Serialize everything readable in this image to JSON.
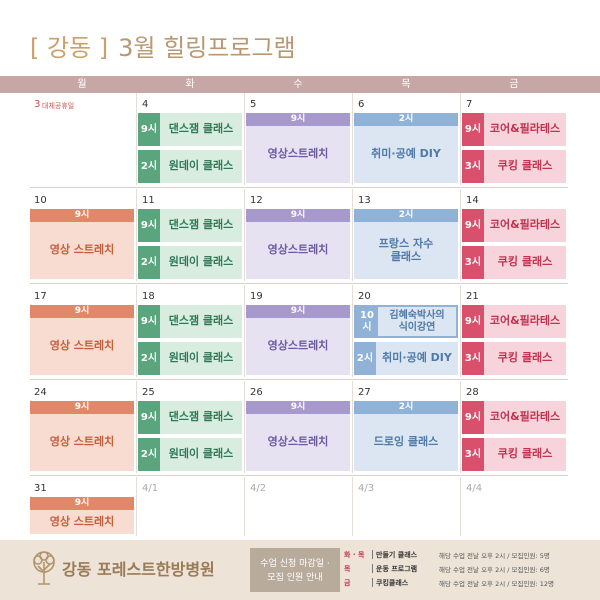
{
  "header": {
    "bracket": "[ 강동 ]",
    "title": "3월 힐링프로그램"
  },
  "weekdays": [
    "월",
    "화",
    "수",
    "목",
    "금"
  ],
  "weeks": [
    [
      {
        "date": "3",
        "date_color": "#d0504a",
        "note": "대체공휴일",
        "events": []
      },
      {
        "date": "4",
        "color": "green",
        "layout": "split",
        "events": [
          {
            "time": "9시",
            "name": "댄스잼 클래스"
          },
          {
            "time": "2시",
            "name": "원데이 클래스"
          }
        ]
      },
      {
        "date": "5",
        "color": "purple",
        "layout": "header",
        "events": [
          {
            "time": "9시",
            "name": "영상스트레치"
          }
        ]
      },
      {
        "date": "6",
        "color": "blue",
        "layout": "header",
        "events": [
          {
            "time": "2시",
            "name": "취미·공예 DIY"
          }
        ]
      },
      {
        "date": "7",
        "color": "pink",
        "layout": "split",
        "events": [
          {
            "time": "9시",
            "name": "코어&필라테스"
          },
          {
            "time": "3시",
            "name": "쿠킹 클래스"
          }
        ]
      }
    ],
    [
      {
        "date": "10",
        "color": "orange",
        "layout": "header",
        "events": [
          {
            "time": "9시",
            "name": "영상 스트레치"
          }
        ]
      },
      {
        "date": "11",
        "color": "green",
        "layout": "split",
        "events": [
          {
            "time": "9시",
            "name": "댄스잼 클래스"
          },
          {
            "time": "2시",
            "name": "원데이 클래스"
          }
        ]
      },
      {
        "date": "12",
        "color": "purple",
        "layout": "header",
        "events": [
          {
            "time": "9시",
            "name": "영상스트레치"
          }
        ]
      },
      {
        "date": "13",
        "color": "blue",
        "layout": "header",
        "events": [
          {
            "time": "2시",
            "name": "프랑스 자수\n클래스"
          }
        ]
      },
      {
        "date": "14",
        "color": "pink",
        "layout": "split",
        "events": [
          {
            "time": "9시",
            "name": "코어&필라테스"
          },
          {
            "time": "3시",
            "name": "쿠킹 클래스"
          }
        ]
      }
    ],
    [
      {
        "date": "17",
        "color": "orange",
        "layout": "header",
        "events": [
          {
            "time": "9시",
            "name": "영상 스트레치"
          }
        ]
      },
      {
        "date": "18",
        "color": "green",
        "layout": "split",
        "events": [
          {
            "time": "9시",
            "name": "댄스잼 클래스"
          },
          {
            "time": "2시",
            "name": "원데이 클래스"
          }
        ]
      },
      {
        "date": "19",
        "color": "purple",
        "layout": "header",
        "events": [
          {
            "time": "9시",
            "name": "영상스트레치"
          }
        ]
      },
      {
        "date": "20",
        "color": "blue",
        "layout": "split",
        "highlight_first": true,
        "events": [
          {
            "time": "10시",
            "name": "김혜숙박사의\n식이강연"
          },
          {
            "time": "2시",
            "name": "취미·공예 DIY"
          }
        ]
      },
      {
        "date": "21",
        "color": "pink",
        "layout": "split",
        "events": [
          {
            "time": "9시",
            "name": "코어&필라테스"
          },
          {
            "time": "3시",
            "name": "쿠킹 클래스"
          }
        ]
      }
    ],
    [
      {
        "date": "24",
        "color": "orange",
        "layout": "header",
        "events": [
          {
            "time": "9시",
            "name": "영상 스트레치"
          }
        ]
      },
      {
        "date": "25",
        "color": "green",
        "layout": "split",
        "events": [
          {
            "time": "9시",
            "name": "댄스잼 클래스"
          },
          {
            "time": "2시",
            "name": "원데이 클래스"
          }
        ]
      },
      {
        "date": "26",
        "color": "purple",
        "layout": "header",
        "events": [
          {
            "time": "9시",
            "name": "영상스트레치"
          }
        ]
      },
      {
        "date": "27",
        "color": "blue",
        "layout": "header",
        "events": [
          {
            "time": "2시",
            "name": "드로잉 클래스"
          }
        ]
      },
      {
        "date": "28",
        "color": "pink",
        "layout": "split",
        "events": [
          {
            "time": "9시",
            "name": "코어&필라테스"
          },
          {
            "time": "3시",
            "name": "쿠킹 클래스"
          }
        ]
      }
    ],
    [
      {
        "date": "31",
        "color": "orange",
        "layout": "header",
        "events": [
          {
            "time": "9시",
            "name": "영상 스트레치"
          }
        ]
      },
      {
        "date": "4/1",
        "date_color": "#aaaaaa",
        "events": []
      },
      {
        "date": "4/2",
        "date_color": "#aaaaaa",
        "events": []
      },
      {
        "date": "4/3",
        "date_color": "#aaaaaa",
        "events": []
      },
      {
        "date": "4/4",
        "date_color": "#aaaaaa",
        "events": []
      }
    ]
  ],
  "footer": {
    "hospital": "강동 포레스트한방병원",
    "notice": [
      "수업 신청 마감일 ·",
      "모집 인원 안내"
    ],
    "items": [
      {
        "days": "화 · 목",
        "program": "만들기 클래스",
        "detail": "해당 수업 전날 오후 2시 / 모집인원: 5명"
      },
      {
        "days": "목",
        "program": "운동 프로그램",
        "detail": "해당 수업 전날 오후 2시 / 모집인원: 6명"
      },
      {
        "days": "금",
        "program": "쿠킹클래스",
        "detail": "해당 수업 전날 오후 2시 / 모집인원: 12명"
      }
    ]
  }
}
